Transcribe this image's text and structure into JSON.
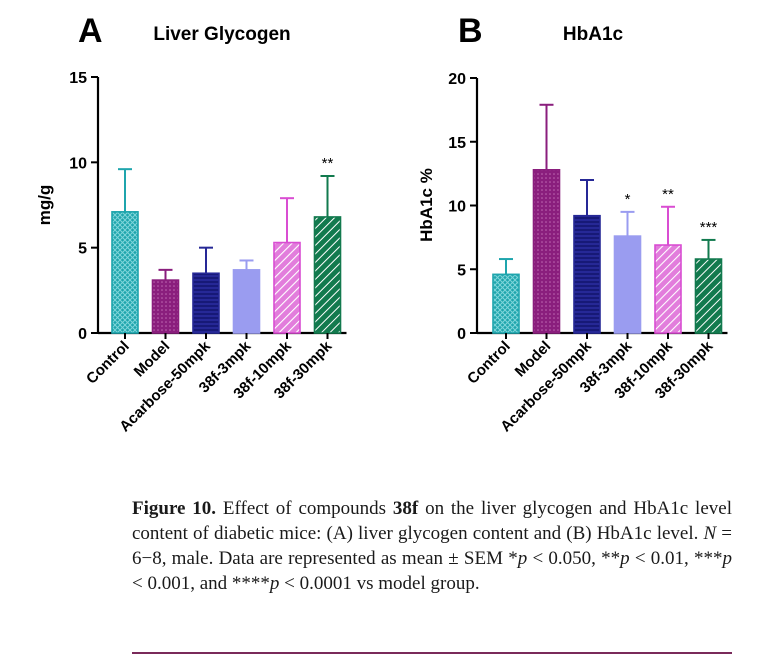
{
  "chart_data": [
    {
      "type": "bar",
      "panel_letter": "A",
      "title": "Liver Glycogen",
      "ylabel": "mg/g",
      "xlabel": "",
      "ylim": [
        0,
        15
      ],
      "yticks": [
        0,
        5,
        10,
        15
      ],
      "categories": [
        "Control",
        "Model",
        "Acarbose-50mpk",
        "38f-3mpk",
        "38f-10mpk",
        "38f-30mpk"
      ],
      "values": [
        7.1,
        3.1,
        3.5,
        3.7,
        5.3,
        6.8
      ],
      "errors": [
        2.5,
        0.6,
        1.5,
        0.55,
        2.6,
        2.4
      ],
      "significance": [
        "",
        "",
        "",
        "",
        "",
        "**"
      ],
      "colors": [
        "#1fa5ad",
        "#8a1e7d",
        "#262896",
        "#9a9cf0",
        "#d94dd2",
        "#127a4e"
      ],
      "patterns": [
        "cross",
        "dots",
        "hline",
        "none",
        "diag",
        "diag"
      ]
    },
    {
      "type": "bar",
      "panel_letter": "B",
      "title": "HbA1c",
      "ylabel": "HbA1c %",
      "xlabel": "",
      "ylim": [
        0,
        20
      ],
      "yticks": [
        0,
        5,
        10,
        15,
        20
      ],
      "categories": [
        "Control",
        "Model",
        "Acarbose-50mpk",
        "38f-3mpk",
        "38f-10mpk",
        "38f-30mpk"
      ],
      "values": [
        4.6,
        12.8,
        9.2,
        7.6,
        6.9,
        5.8
      ],
      "errors": [
        1.2,
        5.1,
        2.8,
        1.9,
        3.0,
        1.5
      ],
      "significance": [
        "",
        "",
        "",
        "*",
        "**",
        "***"
      ],
      "colors": [
        "#1fa5ad",
        "#8a1e7d",
        "#262896",
        "#9a9cf0",
        "#d94dd2",
        "#127a4e"
      ],
      "patterns": [
        "cross",
        "dots",
        "hline",
        "none",
        "diag",
        "diag"
      ]
    }
  ],
  "caption": {
    "label": "Figure 10.",
    "text_1": " Effect of compounds ",
    "compound": "38f",
    "text_2": " on the liver glycogen and HbA1c level content of diabetic mice: (A) liver glycogen content and (B) HbA1c level. ",
    "n_label": "N",
    "n_text": " = 6−8, male. Data are represented as mean ± SEM *",
    "p1": "p",
    "t1": " < 0.050, **",
    "p2": "p",
    "t2": " < 0.01, ***",
    "p3": "p",
    "t3": " < 0.001, and ****",
    "p4": "p",
    "t4": " < 0.0001 vs model group."
  }
}
